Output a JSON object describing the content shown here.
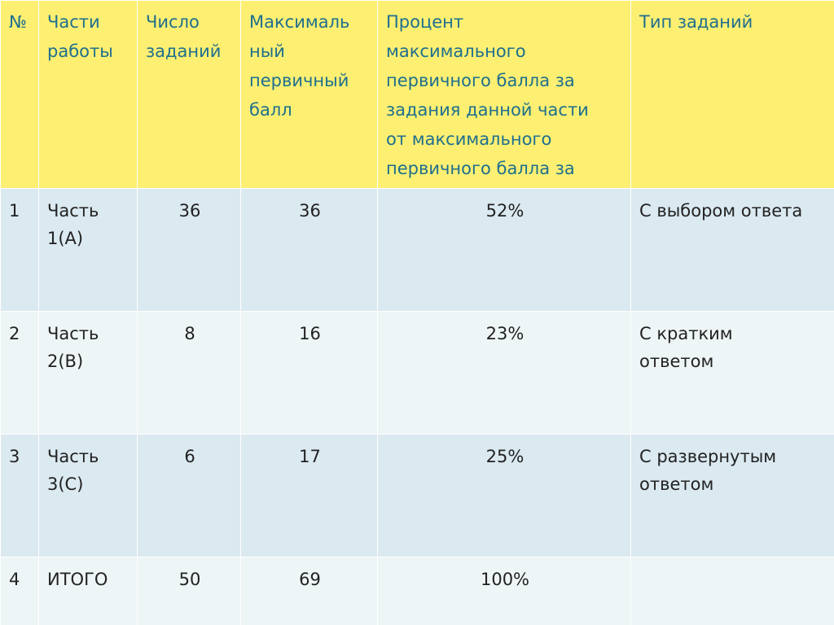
{
  "table": {
    "headers": [
      "№",
      "Части работы",
      "Число заданий",
      "Максимальный первичный балл",
      "Процент максимального первичного балла за задания данной части от максимального первичного балла за",
      "Тип заданий"
    ],
    "header_display": {
      "h0": "№",
      "h1_line1": "Части",
      "h1_line2": "работы",
      "h2_line1": "Число",
      "h2_line2": "заданий",
      "h3_line1": "Максималь",
      "h3_line2": "ный",
      "h3_line3": "первичный",
      "h3_line4": "балл",
      "h4_line1": "Процент",
      "h4_line2": "максимального",
      "h4_line3": "первичного балла за",
      "h4_line4": "задания данной части",
      "h4_line5": "от максимального",
      "h4_line6": "первичного балла за",
      "h5": "Тип заданий"
    },
    "rows": [
      {
        "num": "1",
        "part_line1": "Часть",
        "part_line2": "1(А)",
        "count": "36",
        "max_score": "36",
        "percent": "52%",
        "type_line1": "С выбором ответа",
        "type_line2": ""
      },
      {
        "num": "2",
        "part_line1": "Часть",
        "part_line2": "2(В)",
        "count": "8",
        "max_score": "16",
        "percent": "23%",
        "type_line1": "С кратким",
        "type_line2": "ответом"
      },
      {
        "num": "3",
        "part_line1": "Часть",
        "part_line2": "3(С)",
        "count": "6",
        "max_score": "17",
        "percent": "25%",
        "type_line1": "С развернутым",
        "type_line2": "ответом"
      },
      {
        "num": "4",
        "part_line1": "ИТОГО",
        "part_line2": "",
        "count": "50",
        "max_score": "69",
        "percent": "100%",
        "type_line1": "",
        "type_line2": ""
      }
    ]
  },
  "colors": {
    "header_bg": "#fcef72",
    "header_text": "#1f6f8d",
    "row_odd_bg": "#dbe9f1",
    "row_even_bg": "#eef5f6",
    "body_text": "#222222"
  }
}
